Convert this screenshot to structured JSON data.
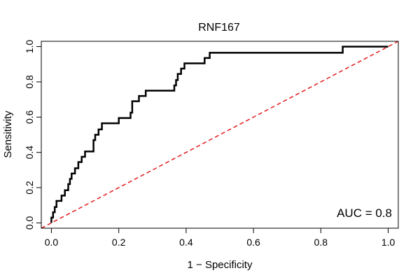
{
  "chart_data": {
    "type": "line",
    "title": "RNF167",
    "xlabel": "1 − Specificity",
    "ylabel": "Sensitivity",
    "xlim": [
      -0.03,
      1.03
    ],
    "ylim": [
      -0.03,
      1.03
    ],
    "xticks": [
      0.0,
      0.2,
      0.4,
      0.6,
      0.8,
      1.0
    ],
    "xtick_labels": [
      "0.0",
      "0.2",
      "0.4",
      "0.6",
      "0.8",
      "1.0"
    ],
    "yticks": [
      0.0,
      0.2,
      0.4,
      0.6,
      0.8,
      1.0
    ],
    "ytick_labels": [
      "0.0",
      "0.2",
      "0.4",
      "0.6",
      "0.8",
      "1.0"
    ],
    "grid": false,
    "annotation": "AUC = 0.8",
    "series": [
      {
        "color": "#000000",
        "style": "solid",
        "x": [
          0.0,
          0.0,
          0.005,
          0.005,
          0.01,
          0.01,
          0.015,
          0.015,
          0.03,
          0.03,
          0.04,
          0.04,
          0.05,
          0.05,
          0.055,
          0.055,
          0.06,
          0.06,
          0.07,
          0.07,
          0.08,
          0.08,
          0.09,
          0.09,
          0.1,
          0.1,
          0.125,
          0.125,
          0.13,
          0.13,
          0.14,
          0.14,
          0.15,
          0.15,
          0.2,
          0.2,
          0.235,
          0.235,
          0.24,
          0.24,
          0.26,
          0.26,
          0.28,
          0.28,
          0.365,
          0.365,
          0.37,
          0.37,
          0.375,
          0.375,
          0.385,
          0.385,
          0.39,
          0.39,
          0.395,
          0.395,
          0.4,
          0.4,
          0.455,
          0.455,
          0.47,
          0.47,
          0.48,
          0.48,
          0.865,
          0.865,
          1.0
        ],
        "y": [
          0.0,
          0.03,
          0.03,
          0.06,
          0.06,
          0.09,
          0.09,
          0.125,
          0.125,
          0.155,
          0.155,
          0.185,
          0.185,
          0.22,
          0.22,
          0.25,
          0.25,
          0.28,
          0.28,
          0.31,
          0.31,
          0.345,
          0.345,
          0.375,
          0.375,
          0.405,
          0.405,
          0.47,
          0.47,
          0.5,
          0.5,
          0.53,
          0.53,
          0.565,
          0.565,
          0.595,
          0.595,
          0.625,
          0.625,
          0.69,
          0.69,
          0.72,
          0.72,
          0.75,
          0.75,
          0.78,
          0.78,
          0.81,
          0.81,
          0.845,
          0.845,
          0.875,
          0.875,
          0.875,
          0.875,
          0.905,
          0.905,
          0.905,
          0.905,
          0.935,
          0.935,
          0.965,
          0.965,
          0.965,
          0.965,
          1.0,
          1.0
        ]
      },
      {
        "color": "#e41a1c",
        "style": "dashed",
        "x": [
          -0.03,
          1.03
        ],
        "y": [
          -0.03,
          1.03
        ]
      }
    ]
  }
}
